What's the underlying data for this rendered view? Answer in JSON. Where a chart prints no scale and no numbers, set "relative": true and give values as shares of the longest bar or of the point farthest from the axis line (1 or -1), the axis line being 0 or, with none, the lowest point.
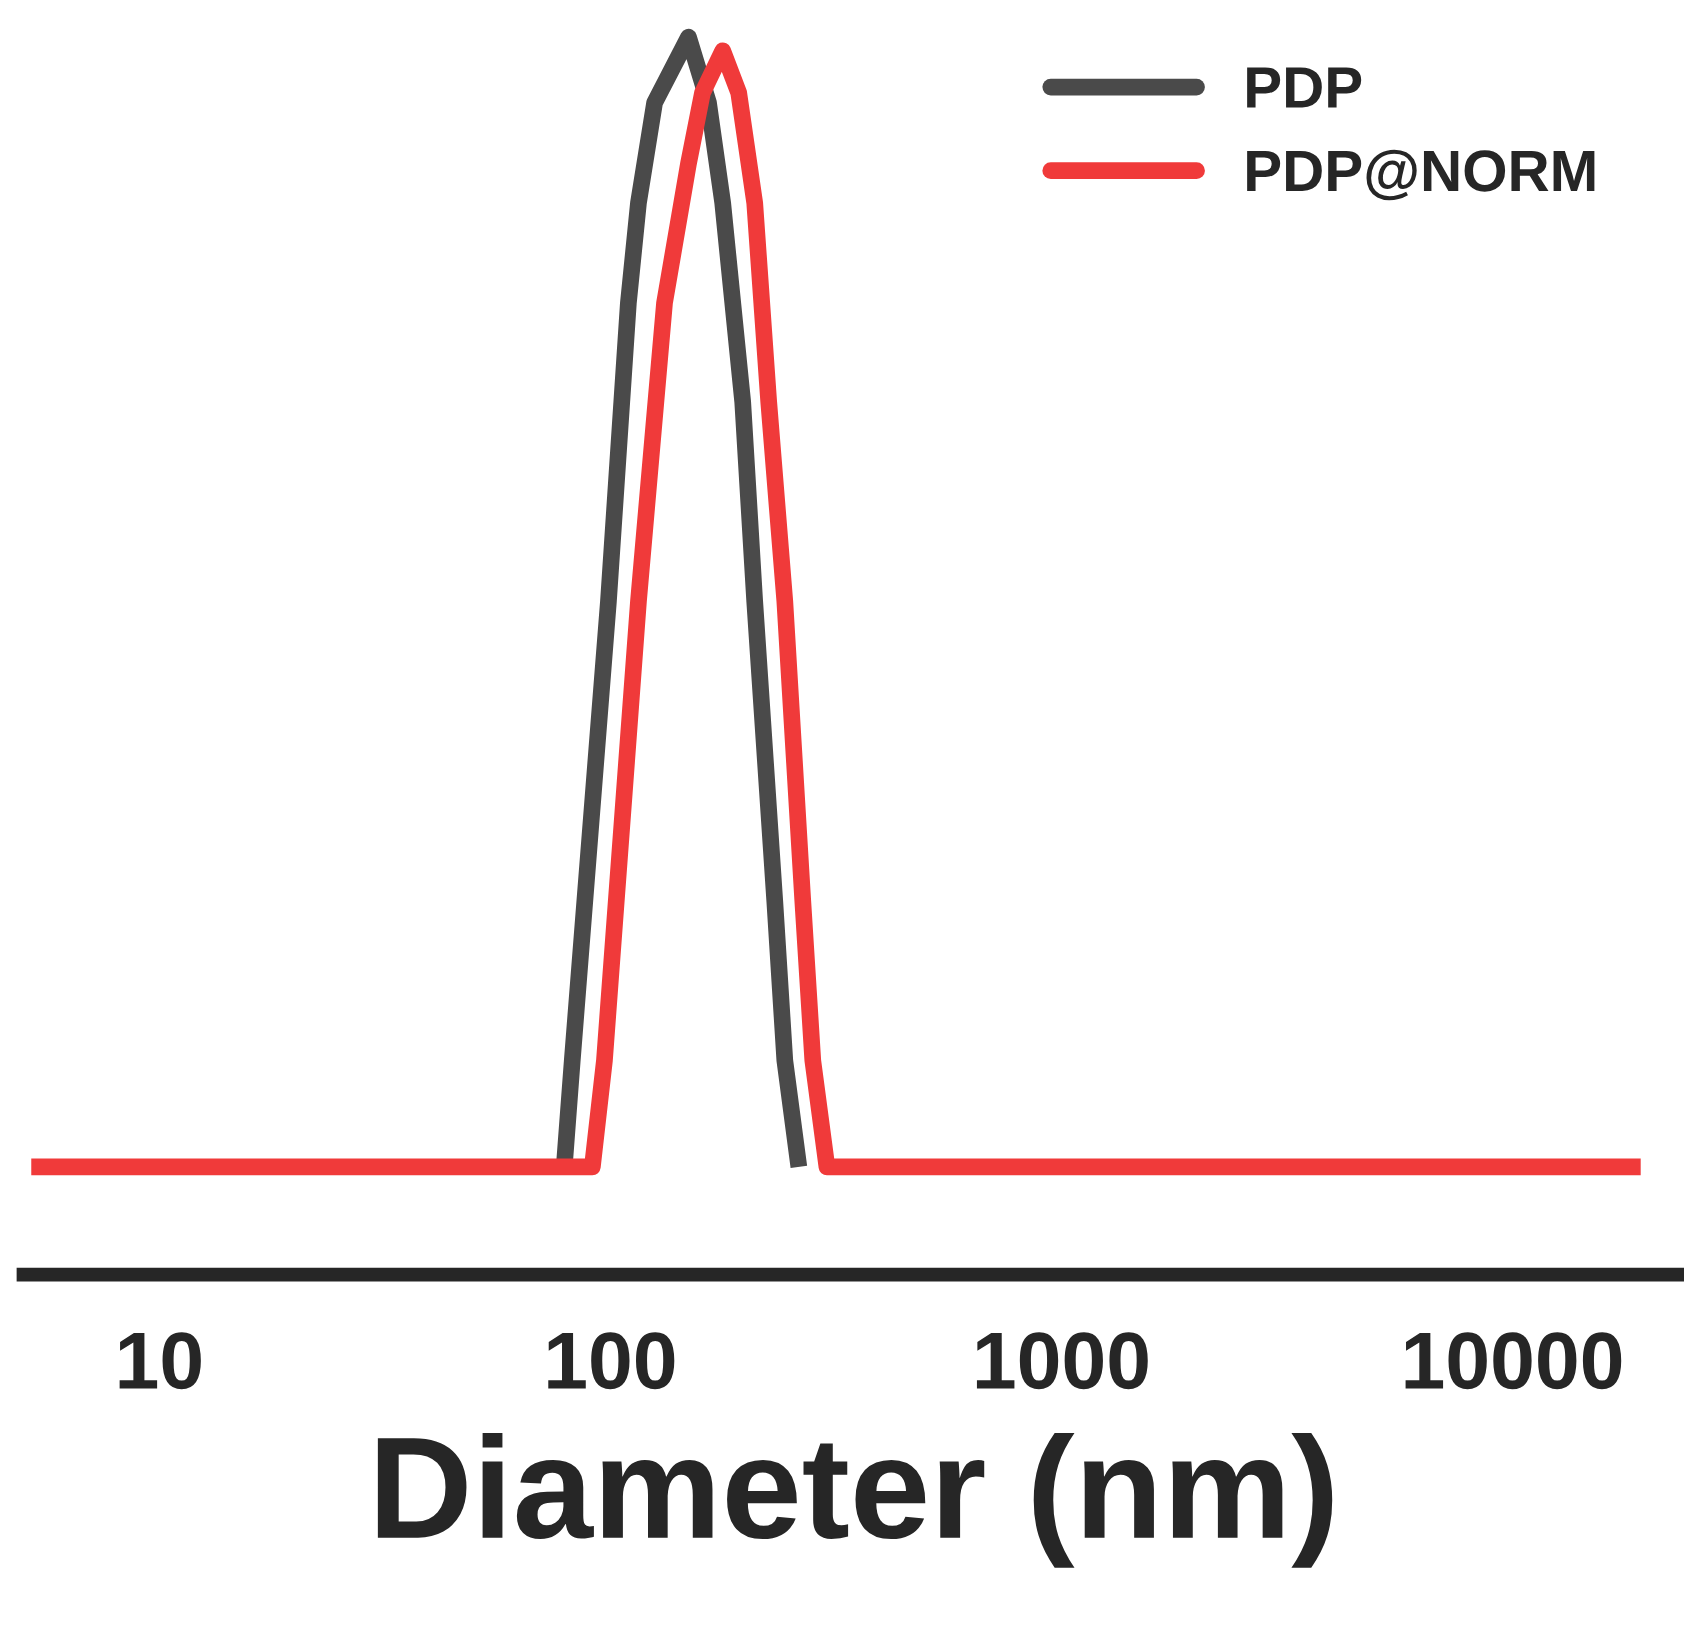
{
  "chart_data": {
    "type": "line",
    "xlabel": "Diameter (nm)",
    "log": "x",
    "relative": true,
    "xlim": [
      5,
      24000
    ],
    "xticks": [
      10,
      100,
      1000,
      10000
    ],
    "legend": "top right",
    "grid": false,
    "marker": "none",
    "line_style": "solid",
    "series": [
      {
        "name": "PDP",
        "color": "#4a4a4a",
        "x": [
          79,
          82.3,
          99,
          109.6,
          115.4,
          125.3,
          149,
          165,
          177.4,
          196.5,
          208.9,
          231.4,
          243.6,
          261.7
        ],
        "values": [
          0.087,
          0.173,
          0.544,
          0.785,
          0.866,
          0.947,
          1.0,
          0.947,
          0.866,
          0.705,
          0.544,
          0.302,
          0.173,
          0.087
        ]
      },
      {
        "name": "PDP@NORM",
        "color": "#f03a3a",
        "x": [
          5.2,
          91.2,
          97,
          115.4,
          131.8,
          149,
          160,
          177.4,
          192.5,
          208.9,
          224.4,
          243.6,
          267,
          281,
          302,
          19240
        ],
        "values": [
          0.087,
          0.087,
          0.173,
          0.544,
          0.785,
          0.898,
          0.955,
          0.989,
          0.955,
          0.866,
          0.705,
          0.544,
          0.302,
          0.173,
          0.087,
          0.087
        ]
      }
    ]
  }
}
